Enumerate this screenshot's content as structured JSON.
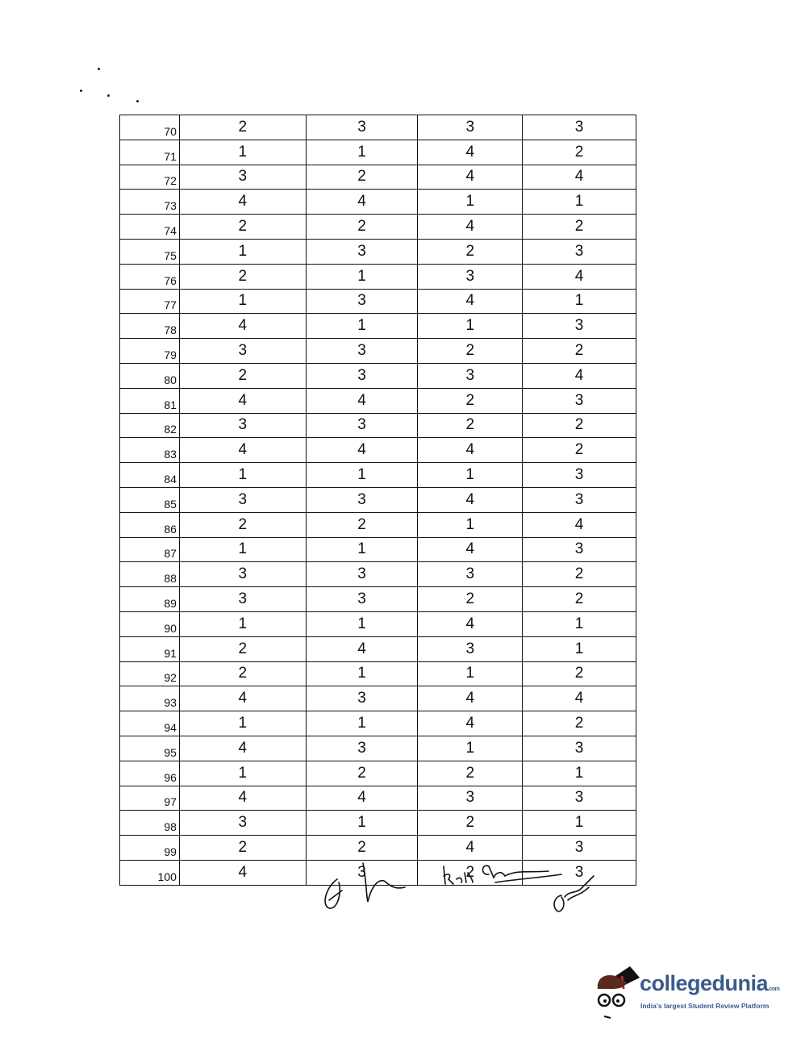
{
  "table": {
    "rows": [
      {
        "q": "70",
        "a": [
          "2",
          "3",
          "3",
          "3"
        ]
      },
      {
        "q": "71",
        "a": [
          "1",
          "1",
          "4",
          "2"
        ]
      },
      {
        "q": "72",
        "a": [
          "3",
          "2",
          "4",
          "4"
        ]
      },
      {
        "q": "73",
        "a": [
          "4",
          "4",
          "1",
          "1"
        ]
      },
      {
        "q": "74",
        "a": [
          "2",
          "2",
          "4",
          "2"
        ]
      },
      {
        "q": "75",
        "a": [
          "1",
          "3",
          "2",
          "3"
        ]
      },
      {
        "q": "76",
        "a": [
          "2",
          "1",
          "3",
          "4"
        ]
      },
      {
        "q": "77",
        "a": [
          "1",
          "3",
          "4",
          "1"
        ]
      },
      {
        "q": "78",
        "a": [
          "4",
          "1",
          "1",
          "3"
        ]
      },
      {
        "q": "79",
        "a": [
          "3",
          "3",
          "2",
          "2"
        ]
      },
      {
        "q": "80",
        "a": [
          "2",
          "3",
          "3",
          "4"
        ]
      },
      {
        "q": "81",
        "a": [
          "4",
          "4",
          "2",
          "3"
        ]
      },
      {
        "q": "82",
        "a": [
          "3",
          "3",
          "2",
          "2"
        ]
      },
      {
        "q": "83",
        "a": [
          "4",
          "4",
          "4",
          "2"
        ]
      },
      {
        "q": "84",
        "a": [
          "1",
          "1",
          "1",
          "3"
        ]
      },
      {
        "q": "85",
        "a": [
          "3",
          "3",
          "4",
          "3"
        ]
      },
      {
        "q": "86",
        "a": [
          "2",
          "2",
          "1",
          "4"
        ]
      },
      {
        "q": "87",
        "a": [
          "1",
          "1",
          "4",
          "3"
        ]
      },
      {
        "q": "88",
        "a": [
          "3",
          "3",
          "3",
          "2"
        ]
      },
      {
        "q": "89",
        "a": [
          "3",
          "3",
          "2",
          "2"
        ]
      },
      {
        "q": "90",
        "a": [
          "1",
          "1",
          "4",
          "1"
        ]
      },
      {
        "q": "91",
        "a": [
          "2",
          "4",
          "3",
          "1"
        ]
      },
      {
        "q": "92",
        "a": [
          "2",
          "1",
          "1",
          "2"
        ]
      },
      {
        "q": "93",
        "a": [
          "4",
          "3",
          "4",
          "4"
        ]
      },
      {
        "q": "94",
        "a": [
          "1",
          "1",
          "4",
          "2"
        ]
      },
      {
        "q": "95",
        "a": [
          "4",
          "3",
          "1",
          "3"
        ]
      },
      {
        "q": "96",
        "a": [
          "1",
          "2",
          "2",
          "1"
        ]
      },
      {
        "q": "97",
        "a": [
          "4",
          "4",
          "3",
          "3"
        ]
      },
      {
        "q": "98",
        "a": [
          "3",
          "1",
          "2",
          "1"
        ]
      },
      {
        "q": "99",
        "a": [
          "2",
          "2",
          "4",
          "3"
        ]
      },
      {
        "q": "100",
        "a": [
          "4",
          "3",
          "2",
          "3"
        ]
      }
    ]
  },
  "watermark": {
    "brand": "collegedunia",
    "brand_suffix": ".com",
    "tagline": "India's largest Student Review Platform",
    "color": "#3c5a8c"
  }
}
